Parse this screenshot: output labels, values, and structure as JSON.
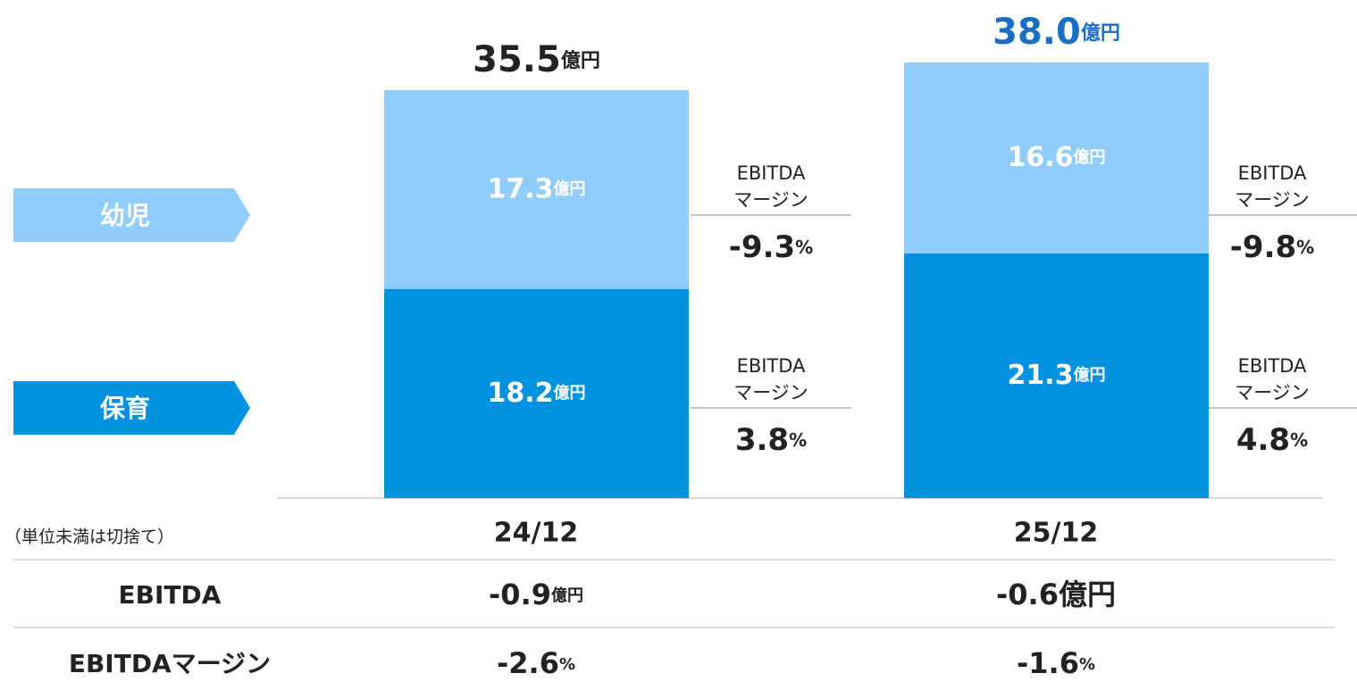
{
  "chart_data": {
    "type": "stacked_bar",
    "categories": [
      "24/12",
      "25/12"
    ],
    "unit": "億円",
    "ylim": [
      0,
      40
    ],
    "series": [
      {
        "name": "保育",
        "color": "#0091e1",
        "values": [
          18.2,
          21.3
        ],
        "margins": [
          3.8,
          4.8
        ]
      },
      {
        "name": "幼児",
        "color": "#91cdfb",
        "values": [
          17.3,
          16.6
        ],
        "margins": [
          -9.3,
          -9.8
        ]
      }
    ],
    "margin_title": [
      "EBITDA",
      "マージン"
    ],
    "margin_unit": "%",
    "totals": {
      "values": [
        35.5,
        38.0
      ],
      "value_labels": [
        "35.5",
        "38.0"
      ],
      "colors": [
        "#222222",
        "#1a6fc4"
      ]
    },
    "note": "（単位未満は切捨て）",
    "table": [
      {
        "label": "EBITDA",
        "values": [
          -0.9,
          -0.6
        ],
        "unit": "億円"
      },
      {
        "label": "EBITDAマージン",
        "values": [
          -2.6,
          -1.6
        ],
        "unit": "%"
      }
    ]
  }
}
